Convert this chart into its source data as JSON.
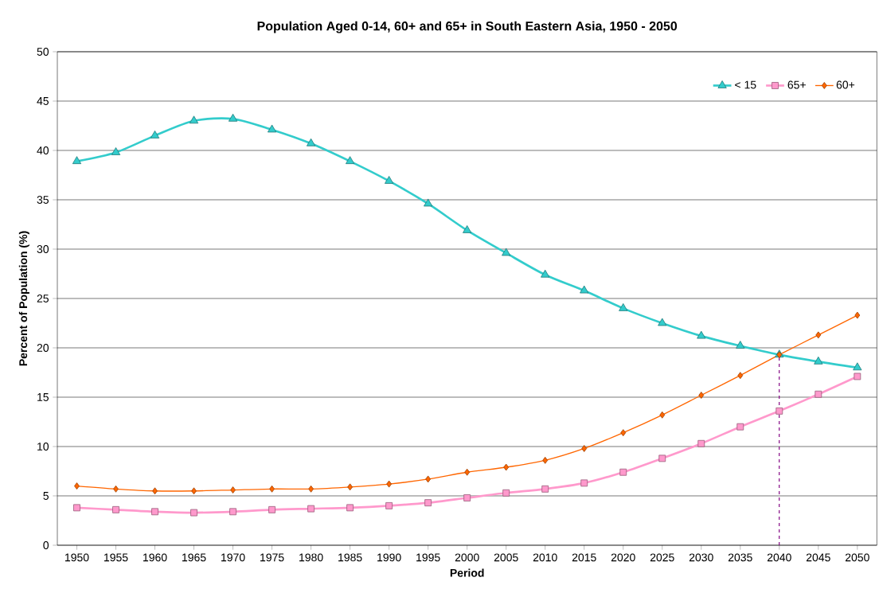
{
  "chart_data": {
    "type": "line",
    "title": "Population Aged 0-14, 60+ and 65+ in South Eastern Asia, 1950 - 2050",
    "xlabel": "Period",
    "ylabel": "Percent of Population (%)",
    "categories": [
      "1950",
      "1955",
      "1960",
      "1965",
      "1970",
      "1975",
      "1980",
      "1985",
      "1990",
      "1995",
      "2000",
      "2005",
      "2010",
      "2015",
      "2020",
      "2025",
      "2030",
      "2035",
      "2040",
      "2045",
      "2050"
    ],
    "series": [
      {
        "name": "< 15",
        "color": "#33cccc",
        "marker": "triangle",
        "values": [
          38.9,
          39.8,
          41.5,
          43.0,
          43.2,
          42.1,
          40.7,
          38.9,
          36.9,
          34.6,
          31.9,
          29.6,
          27.4,
          25.8,
          24.0,
          22.5,
          21.2,
          20.2,
          19.3,
          18.6,
          18.0
        ]
      },
      {
        "name": "65+",
        "color": "#ff99cc",
        "marker": "square",
        "values": [
          3.8,
          3.6,
          3.4,
          3.3,
          3.4,
          3.6,
          3.7,
          3.8,
          4.0,
          4.3,
          4.8,
          5.3,
          5.7,
          6.3,
          7.4,
          8.8,
          10.3,
          12.0,
          13.6,
          15.3,
          17.1
        ]
      },
      {
        "name": "60+",
        "color": "#ff6600",
        "marker": "diamond",
        "values": [
          6.0,
          5.7,
          5.5,
          5.5,
          5.6,
          5.7,
          5.7,
          5.9,
          6.2,
          6.7,
          7.4,
          7.9,
          8.6,
          9.8,
          11.4,
          13.2,
          15.2,
          17.2,
          19.3,
          21.3,
          23.3
        ]
      }
    ],
    "ylim": [
      0,
      50
    ],
    "yticks": [
      0,
      5,
      10,
      15,
      20,
      25,
      30,
      35,
      40,
      45,
      50
    ],
    "grid": "y",
    "legend": "top right",
    "line_style": "solid",
    "ref_lines": [
      {
        "axis": "x",
        "value": "2040",
        "color": "#800080",
        "line_style": "dashed"
      }
    ]
  }
}
